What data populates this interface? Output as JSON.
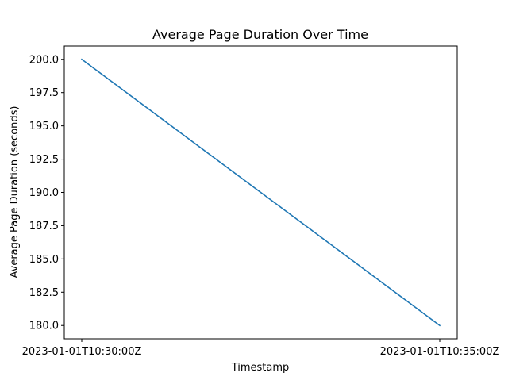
{
  "chart_data": {
    "type": "line",
    "title": "Average Page Duration Over Time",
    "xlabel": "Timestamp",
    "ylabel": "Average Page Duration (seconds)",
    "x": [
      "2023-01-01T10:30:00Z",
      "2023-01-01T10:35:00Z"
    ],
    "series": [
      {
        "values": [
          200.0,
          180.0
        ],
        "color": "#1f77b4"
      }
    ],
    "ylim": [
      179.0,
      201.0
    ],
    "yticks": [
      "180.0",
      "182.5",
      "185.0",
      "187.5",
      "190.0",
      "192.5",
      "195.0",
      "197.5",
      "200.0"
    ],
    "xticks": [
      "2023-01-01T10:30:00Z",
      "2023-01-01T10:35:00Z"
    ],
    "grid": false,
    "legend": "none"
  }
}
